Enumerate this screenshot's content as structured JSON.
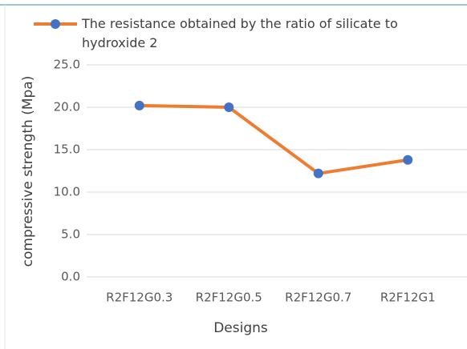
{
  "chart_data": {
    "type": "line",
    "categories": [
      "R2F12G0.3",
      "R2F12G0.5",
      "R2F12G0.7",
      "R2F12G1"
    ],
    "series": [
      {
        "name": "The resistance obtained by the ratio of silicate to hydroxide 2",
        "color": "#ed7d31",
        "marker_color": "#4472c4",
        "values": [
          20.2,
          20.0,
          12.2,
          13.8
        ]
      }
    ],
    "ylim": [
      0,
      25
    ],
    "yticks": [
      {
        "value": 0,
        "label": "0.0"
      },
      {
        "value": 5,
        "label": "5.0"
      },
      {
        "value": 10,
        "label": "10.0"
      },
      {
        "value": 15,
        "label": "15.0"
      },
      {
        "value": 20,
        "label": "20.0"
      },
      {
        "value": 25,
        "label": "25.0"
      }
    ],
    "y_label": "compressive strength (Mpa)",
    "x_label": "Designs",
    "grid": true,
    "legend": "top"
  }
}
